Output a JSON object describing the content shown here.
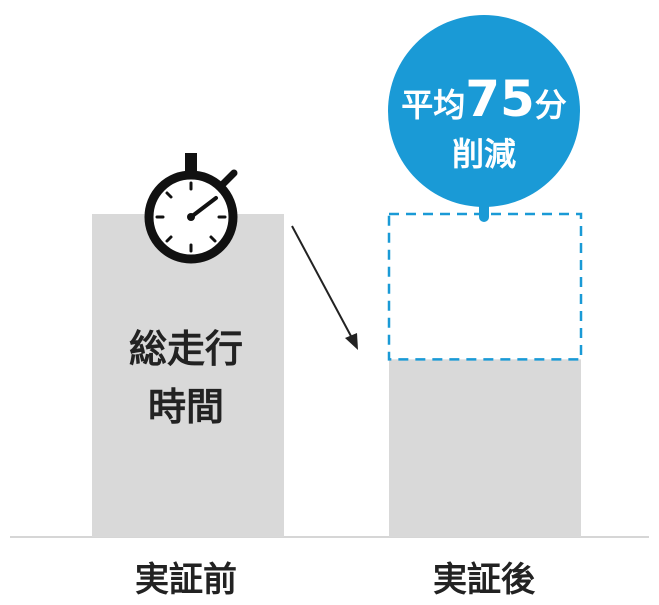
{
  "chart_data": {
    "type": "bar",
    "categories": [
      "実証前",
      "実証後"
    ],
    "values": [
      100,
      55
    ],
    "unit": "relative",
    "ylim": [
      0,
      100
    ],
    "reduction_box_value": 45,
    "bar_inner_label_lines": [
      "総走行",
      "時間"
    ],
    "callout": {
      "prefix": "平均",
      "number": "75",
      "suffix": "分",
      "line2": "削減"
    },
    "colors": {
      "bar": "#d9d9d9",
      "accent": "#1a9ad6",
      "text": "#222222",
      "baseline": "#c8c8c8"
    },
    "icons": [
      "stopwatch-icon",
      "arrow-down-right-icon"
    ]
  }
}
